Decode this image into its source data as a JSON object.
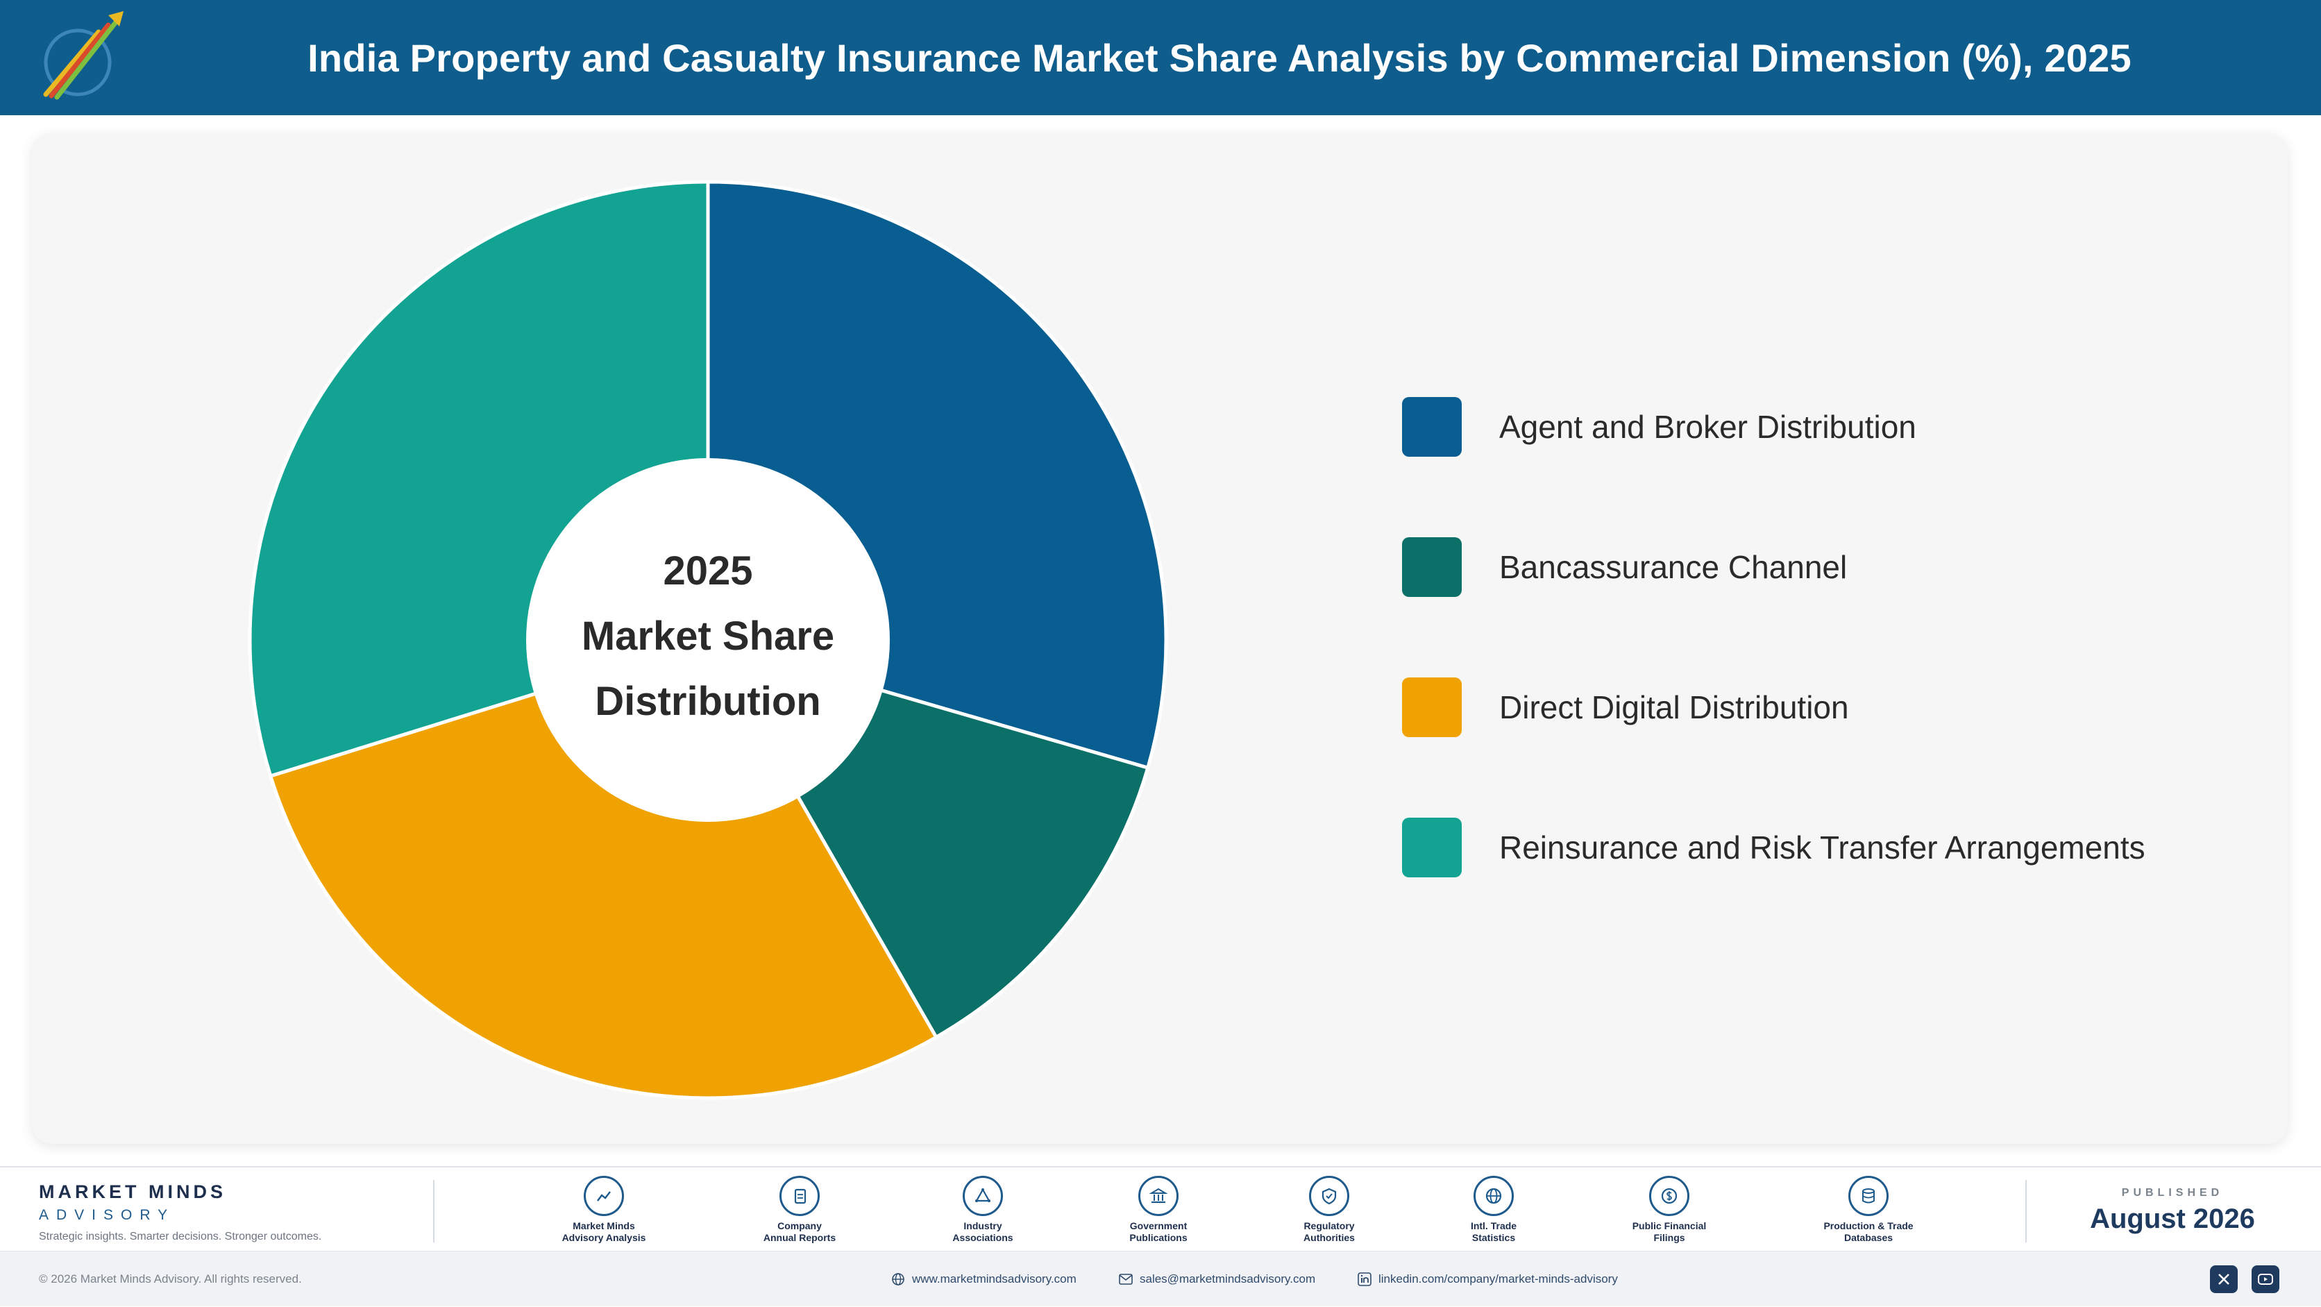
{
  "header": {
    "title": "India Property and Casualty Insurance Market Share Analysis by Commercial Dimension (%), 2025",
    "logo_icon": "market-minds-logo"
  },
  "chart_data": {
    "type": "pie",
    "style": "donut",
    "center_label": [
      "2025",
      "Market Share",
      "Distribution"
    ],
    "categories": [
      "Agent and Broker Distribution",
      "Bancassurance Channel",
      "Direct Digital Distribution",
      "Reinsurance and Risk Transfer Arrangements"
    ],
    "values": [
      29.5,
      12.2,
      28.5,
      29.8
    ],
    "colors": [
      "#085e91",
      "#0b7068",
      "#f0a202",
      "#12a393"
    ],
    "legend_position": "right"
  },
  "footer": {
    "brand_name": "MARKET MINDS",
    "brand_sub": "ADVISORY",
    "brand_tagline": "Strategic insights. Smarter decisions. Stronger outcomes.",
    "sources": [
      {
        "label": "Market Minds\nAdvisory Analysis",
        "icon": "trend-chart-icon"
      },
      {
        "label": "Company\nAnnual Reports",
        "icon": "document-icon"
      },
      {
        "label": "Industry\nAssociations",
        "icon": "network-icon"
      },
      {
        "label": "Government\nPublications",
        "icon": "government-building-icon"
      },
      {
        "label": "Regulatory\nAuthorities",
        "icon": "shield-check-icon"
      },
      {
        "label": "Intl. Trade\nStatistics",
        "icon": "globe-icon"
      },
      {
        "label": "Public Financial\nFilings",
        "icon": "dollar-coin-icon"
      },
      {
        "label": "Production & Trade\nDatabases",
        "icon": "database-icon"
      }
    ],
    "published_label": "PUBLISHED",
    "published_date": "August 2026"
  },
  "bottom_bar": {
    "copyright": "© 2026 Market Minds Advisory. All rights reserved.",
    "website": "www.marketmindsadvisory.com",
    "email": "sales@marketmindsadvisory.com",
    "linkedin": "linkedin.com/company/market-minds-advisory",
    "social_icons": [
      "x-icon",
      "youtube-icon"
    ]
  }
}
